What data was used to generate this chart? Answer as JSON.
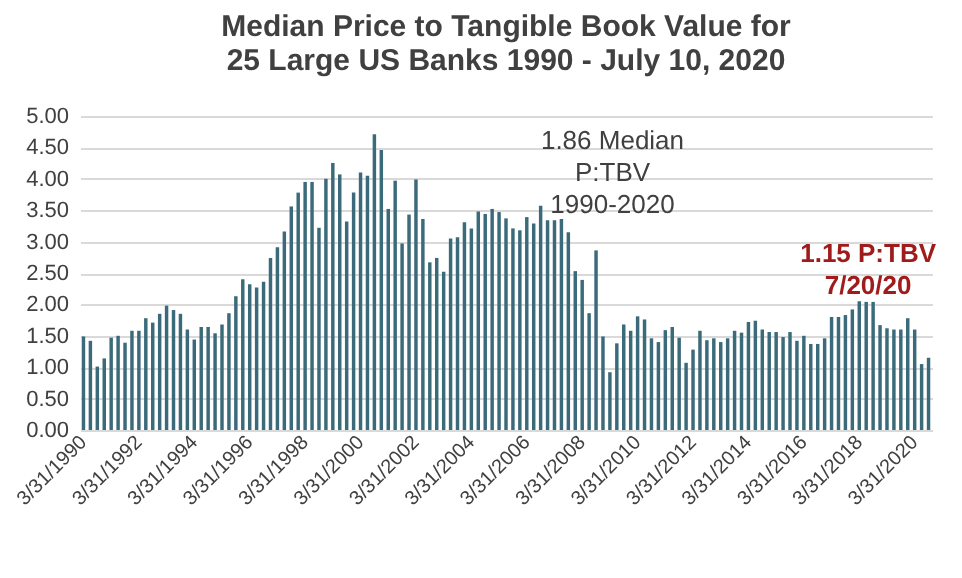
{
  "chart_data": {
    "type": "bar",
    "title": "Median Price to Tangible Book Value for 25 Large US Banks 1990 - July 10, 2020",
    "categories": [
      "3/31/1990",
      null,
      null,
      null,
      null,
      null,
      null,
      null,
      "3/31/1992",
      null,
      null,
      null,
      null,
      null,
      null,
      null,
      "3/31/1994",
      null,
      null,
      null,
      null,
      null,
      null,
      null,
      "3/31/1996",
      null,
      null,
      null,
      null,
      null,
      null,
      null,
      "3/31/1998",
      null,
      null,
      null,
      null,
      null,
      null,
      null,
      "3/31/2000",
      null,
      null,
      null,
      null,
      null,
      null,
      null,
      "3/31/2002",
      null,
      null,
      null,
      null,
      null,
      null,
      null,
      "3/31/2004",
      null,
      null,
      null,
      null,
      null,
      null,
      null,
      "3/31/2006",
      null,
      null,
      null,
      null,
      null,
      null,
      null,
      "3/31/2008",
      null,
      null,
      null,
      null,
      null,
      null,
      null,
      "3/31/2010",
      null,
      null,
      null,
      null,
      null,
      null,
      null,
      "3/31/2012",
      null,
      null,
      null,
      null,
      null,
      null,
      null,
      "3/31/2014",
      null,
      null,
      null,
      null,
      null,
      null,
      null,
      "3/31/2016",
      null,
      null,
      null,
      null,
      null,
      null,
      null,
      "3/31/2018",
      null,
      null,
      null,
      null,
      null,
      null,
      null,
      "3/31/2020",
      null,
      null
    ],
    "values": [
      1.49,
      1.42,
      1.01,
      1.14,
      1.47,
      1.5,
      1.39,
      1.58,
      1.58,
      1.78,
      1.71,
      1.85,
      1.98,
      1.91,
      1.85,
      1.6,
      1.44,
      1.64,
      1.64,
      1.54,
      1.68,
      1.86,
      2.13,
      2.4,
      2.32,
      2.27,
      2.36,
      2.74,
      2.91,
      3.16,
      3.56,
      3.78,
      3.95,
      3.95,
      3.22,
      4.0,
      4.25,
      4.07,
      3.32,
      3.78,
      4.1,
      4.05,
      4.71,
      4.46,
      3.52,
      3.97,
      2.97,
      3.43,
      3.99,
      3.36,
      2.67,
      2.74,
      2.52,
      3.05,
      3.07,
      3.31,
      3.21,
      3.48,
      3.44,
      3.52,
      3.47,
      3.37,
      3.21,
      3.18,
      3.39,
      3.29,
      3.57,
      3.34,
      3.34,
      3.36,
      3.15,
      2.53,
      2.39,
      1.86,
      2.86,
      1.49,
      0.92,
      1.38,
      1.68,
      1.58,
      1.81,
      1.76,
      1.46,
      1.4,
      1.59,
      1.64,
      1.47,
      1.07,
      1.28,
      1.58,
      1.43,
      1.46,
      1.4,
      1.46,
      1.58,
      1.55,
      1.72,
      1.74,
      1.6,
      1.56,
      1.56,
      1.48,
      1.56,
      1.42,
      1.5,
      1.37,
      1.37,
      1.46,
      1.8,
      1.8,
      1.83,
      1.92,
      2.05,
      2.04,
      2.04,
      1.67,
      1.62,
      1.6,
      1.6,
      1.78,
      1.6,
      1.05,
      1.15
    ],
    "color": "#3b6b7a",
    "ylim": [
      0,
      5
    ],
    "yticks": [
      {
        "value": 0,
        "label": "0.00"
      },
      {
        "value": 0.5,
        "label": "0.50"
      },
      {
        "value": 1,
        "label": "1.00"
      },
      {
        "value": 1.5,
        "label": "1.50"
      },
      {
        "value": 2,
        "label": "2.00"
      },
      {
        "value": 2.5,
        "label": "2.50"
      },
      {
        "value": 3,
        "label": "3.00"
      },
      {
        "value": 3.5,
        "label": "3.50"
      },
      {
        "value": 4,
        "label": "4.00"
      },
      {
        "value": 4.5,
        "label": "4.50"
      },
      {
        "value": 5,
        "label": "5.00"
      }
    ],
    "grid": true,
    "annotations": [
      "1.86 Median\nP:TBV\n1990-2020",
      "1.15 P:TBV\n7/20/20"
    ]
  }
}
